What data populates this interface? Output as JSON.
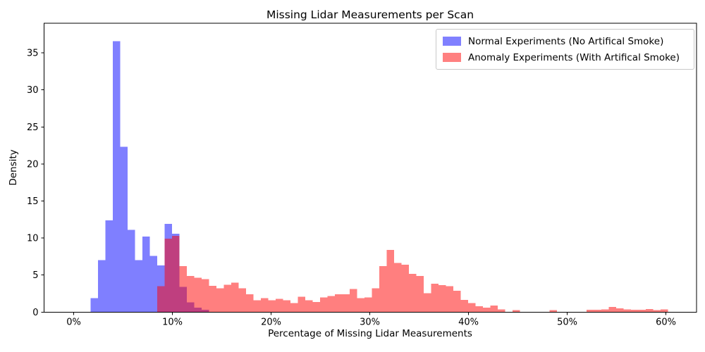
{
  "figure": {
    "title": "Missing Lidar Measurements per Scan",
    "xlabel": "Percentage of Missing Lidar Measurements",
    "ylabel": "Density"
  },
  "legend": {
    "position": "upper-right",
    "items": [
      {
        "label": "Normal Experiments (No Artifical Smoke)",
        "color": "#8080ff"
      },
      {
        "label": "Anomaly Experiments (With Artifical Smoke)",
        "color": "#ff8080"
      }
    ]
  },
  "chart_data": {
    "type": "bar",
    "subtype": "overlaid-density-histogram",
    "title": "Missing Lidar Measurements per Scan",
    "xlabel": "Percentage of Missing Lidar Measurements",
    "ylabel": "Density",
    "grid": false,
    "xlim": [
      -3,
      63.1
    ],
    "ylim": [
      0,
      39
    ],
    "bin_width_pct": 0.75,
    "x_tick_values": [
      0,
      10,
      20,
      30,
      40,
      50,
      60
    ],
    "x_tick_labels": [
      "0%",
      "10%",
      "20%",
      "30%",
      "40%",
      "50%",
      "60%"
    ],
    "y_tick_values": [
      0,
      5,
      10,
      15,
      20,
      25,
      30,
      35
    ],
    "y_tick_labels": [
      "0",
      "5",
      "10",
      "15",
      "20",
      "25",
      "30",
      "35"
    ],
    "series": [
      {
        "name": "Normal Experiments (No Artifical Smoke)",
        "fill": "rgba(0,0,255,0.5)",
        "bars": [
          [
            1.7,
            1.9
          ],
          [
            2.45,
            7.0
          ],
          [
            3.2,
            12.4
          ],
          [
            3.95,
            36.6
          ],
          [
            4.7,
            22.3
          ],
          [
            5.45,
            11.1
          ],
          [
            6.2,
            7.0
          ],
          [
            6.95,
            10.2
          ],
          [
            7.7,
            7.6
          ],
          [
            8.45,
            6.3
          ],
          [
            9.2,
            11.9
          ],
          [
            9.95,
            10.6
          ],
          [
            10.7,
            3.4
          ],
          [
            11.45,
            1.3
          ],
          [
            12.2,
            0.6
          ],
          [
            12.95,
            0.3
          ]
        ]
      },
      {
        "name": "Anomaly Experiments (With Artifical Smoke)",
        "fill": "rgba(255,0,0,0.5)",
        "bars": [
          [
            8.45,
            3.5
          ],
          [
            9.2,
            9.9
          ],
          [
            9.95,
            10.3
          ],
          [
            10.7,
            6.2
          ],
          [
            11.45,
            4.9
          ],
          [
            12.2,
            4.65
          ],
          [
            12.95,
            4.45
          ],
          [
            13.7,
            3.55
          ],
          [
            14.45,
            3.2
          ],
          [
            15.2,
            3.7
          ],
          [
            15.95,
            3.95
          ],
          [
            16.7,
            3.2
          ],
          [
            17.45,
            2.4
          ],
          [
            18.2,
            1.6
          ],
          [
            18.95,
            1.9
          ],
          [
            19.7,
            1.6
          ],
          [
            20.45,
            1.8
          ],
          [
            21.2,
            1.6
          ],
          [
            21.95,
            1.2
          ],
          [
            22.7,
            2.05
          ],
          [
            23.45,
            1.6
          ],
          [
            24.2,
            1.35
          ],
          [
            24.95,
            2.0
          ],
          [
            25.7,
            2.15
          ],
          [
            26.45,
            2.4
          ],
          [
            27.2,
            2.4
          ],
          [
            27.95,
            3.1
          ],
          [
            28.7,
            1.9
          ],
          [
            29.45,
            2.0
          ],
          [
            30.2,
            3.2
          ],
          [
            30.95,
            6.2
          ],
          [
            31.7,
            8.4
          ],
          [
            32.45,
            6.65
          ],
          [
            33.2,
            6.4
          ],
          [
            33.95,
            5.15
          ],
          [
            34.7,
            4.9
          ],
          [
            35.45,
            2.55
          ],
          [
            36.2,
            3.85
          ],
          [
            36.95,
            3.65
          ],
          [
            37.7,
            3.5
          ],
          [
            38.45,
            2.9
          ],
          [
            39.2,
            1.65
          ],
          [
            39.95,
            1.2
          ],
          [
            40.7,
            0.8
          ],
          [
            41.45,
            0.6
          ],
          [
            42.2,
            0.9
          ],
          [
            42.95,
            0.35
          ],
          [
            44.45,
            0.25
          ],
          [
            48.2,
            0.25
          ],
          [
            51.95,
            0.3
          ],
          [
            52.7,
            0.3
          ],
          [
            53.45,
            0.35
          ],
          [
            54.2,
            0.7
          ],
          [
            54.95,
            0.5
          ],
          [
            55.7,
            0.35
          ],
          [
            56.45,
            0.3
          ],
          [
            57.2,
            0.3
          ],
          [
            57.95,
            0.4
          ],
          [
            58.7,
            0.25
          ],
          [
            59.45,
            0.35
          ]
        ]
      }
    ]
  }
}
